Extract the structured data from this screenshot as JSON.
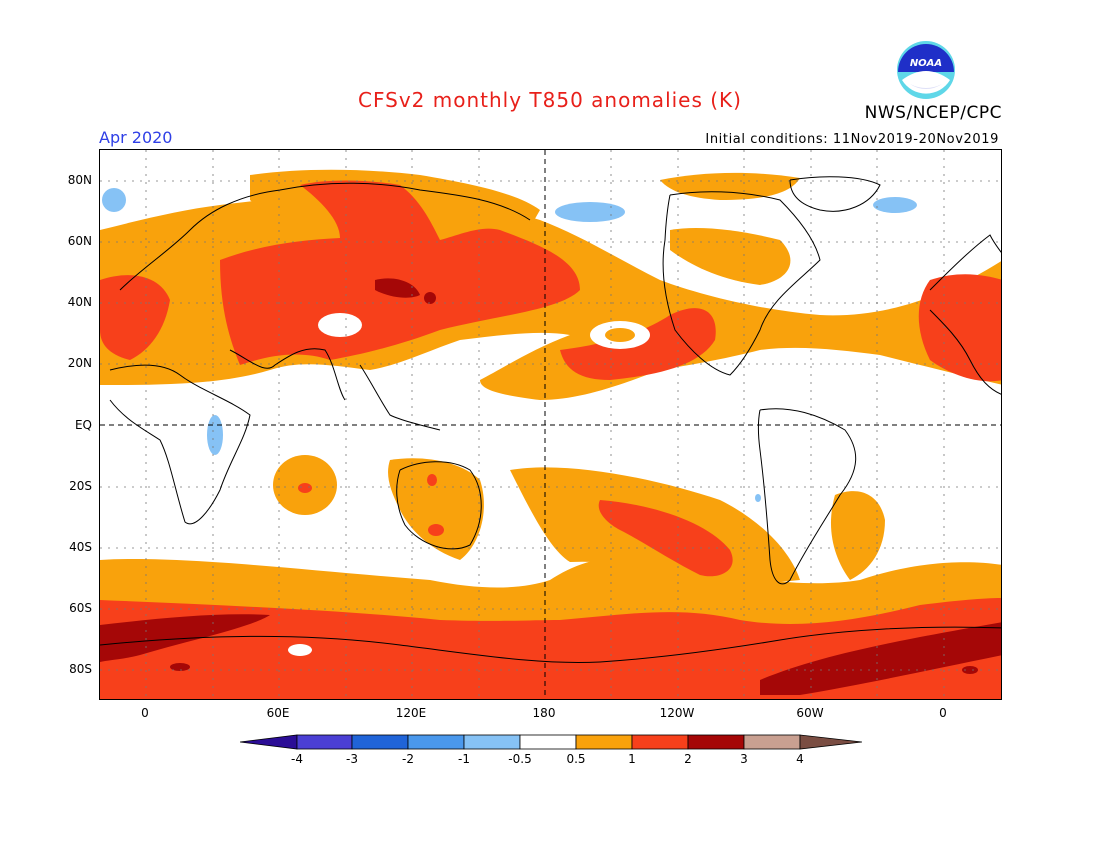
{
  "header": {
    "title": "CFSv2 monthly T850 anomalies (K)",
    "org": "NWS/NCEP/CPC",
    "month": "Apr 2020",
    "initial_conditions": "Initial conditions: 11Nov2019-20Nov2019",
    "logo_text": "NOAA"
  },
  "map": {
    "lat_labels": [
      "80N",
      "60N",
      "40N",
      "20N",
      "EQ",
      "20S",
      "40S",
      "60S",
      "80S"
    ],
    "lon_labels": [
      "0",
      "60E",
      "120E",
      "180",
      "120W",
      "60W",
      "0"
    ]
  },
  "colorbar": {
    "tick_labels": [
      "-4",
      "-3",
      "-2",
      "-1",
      "-0.5",
      "0.5",
      "1",
      "2",
      "3",
      "4"
    ],
    "colors": [
      "#2b0d96",
      "#4b3fd4",
      "#2064d8",
      "#4a98ec",
      "#86c2f5",
      "#ffffff",
      "#f9a20c",
      "#f7401b",
      "#a50707",
      "#c9a091",
      "#7a4d42"
    ]
  }
}
